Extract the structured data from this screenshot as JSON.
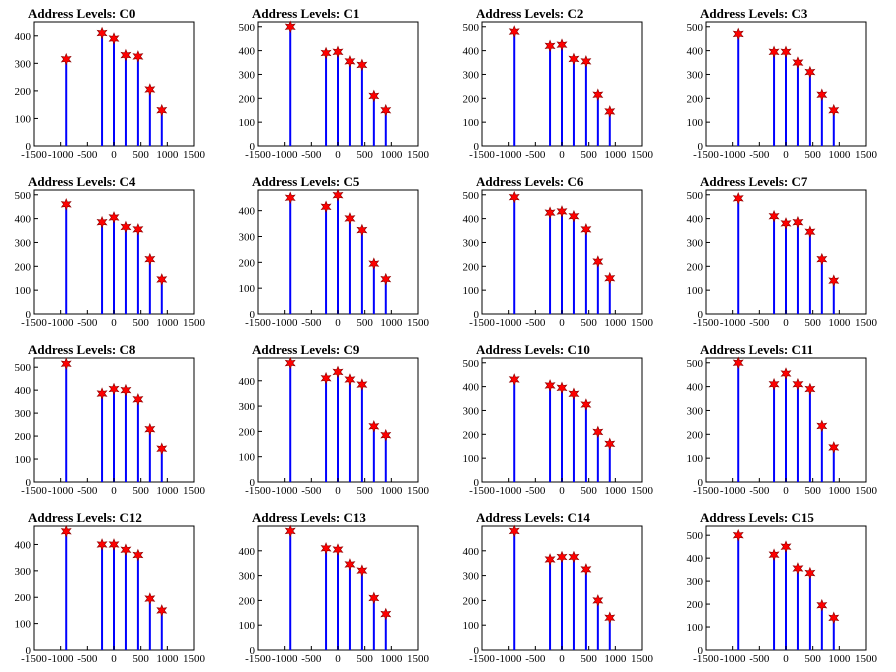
{
  "colors": {
    "spike": "#0000ff",
    "marker": "#ff0000",
    "axis": "#000000"
  },
  "chart_data": [
    {
      "type": "bar",
      "title": "Address Levels: C0",
      "title_prefix": "Address Levels: ",
      "label": "C0",
      "x": [
        -896,
        -224,
        0,
        224,
        448,
        672,
        896
      ],
      "values": [
        315,
        410,
        390,
        330,
        325,
        205,
        130
      ],
      "ylim": [
        0,
        450
      ],
      "yticks": [
        0,
        100,
        200,
        300,
        400
      ],
      "xlim": [
        -1500,
        1500
      ],
      "xticks": [
        -1500,
        -1000,
        -500,
        0,
        500,
        1000,
        1500
      ],
      "xticklabels": [
        "-1500",
        "-1000",
        "-500",
        "0",
        "500",
        "1000",
        "1500"
      ],
      "grid": false
    },
    {
      "type": "bar",
      "title": "Address Levels: C1",
      "title_prefix": "Address Levels: ",
      "label": "C1",
      "x": [
        -896,
        -224,
        0,
        224,
        448,
        672,
        896
      ],
      "values": [
        500,
        390,
        395,
        355,
        340,
        210,
        150
      ],
      "ylim": [
        0,
        520
      ],
      "yticks": [
        0,
        100,
        200,
        300,
        400,
        500
      ],
      "xlim": [
        -1500,
        1500
      ],
      "xticks": [
        -1500,
        -1000,
        -500,
        0,
        500,
        1000,
        1500
      ],
      "xticklabels": [
        "-1500",
        "-1000",
        "-500",
        "0",
        "500",
        "1000",
        "1500"
      ],
      "grid": false
    },
    {
      "type": "bar",
      "title": "Address Levels: C2",
      "title_prefix": "Address Levels: ",
      "label": "C2",
      "x": [
        -896,
        -224,
        0,
        224,
        448,
        672,
        896
      ],
      "values": [
        480,
        420,
        425,
        365,
        355,
        215,
        145
      ],
      "ylim": [
        0,
        520
      ],
      "yticks": [
        0,
        100,
        200,
        300,
        400,
        500
      ],
      "xlim": [
        -1500,
        1500
      ],
      "xticks": [
        -1500,
        -1000,
        -500,
        0,
        500,
        1000,
        1500
      ],
      "xticklabels": [
        "-1500",
        "-1000",
        "-500",
        "0",
        "500",
        "1000",
        "1500"
      ],
      "grid": false
    },
    {
      "type": "bar",
      "title": "Address Levels: C3",
      "title_prefix": "Address Levels: ",
      "label": "C3",
      "x": [
        -896,
        -224,
        0,
        224,
        448,
        672,
        896
      ],
      "values": [
        470,
        395,
        395,
        350,
        310,
        215,
        150
      ],
      "ylim": [
        0,
        520
      ],
      "yticks": [
        0,
        100,
        200,
        300,
        400,
        500
      ],
      "xlim": [
        -1500,
        1500
      ],
      "xticks": [
        -1500,
        -1000,
        -500,
        0,
        500,
        1000,
        1500
      ],
      "xticklabels": [
        "-1500",
        "-1000",
        "-500",
        "0",
        "500",
        "1000",
        "1500"
      ],
      "grid": false
    },
    {
      "type": "bar",
      "title": "Address Levels: C4",
      "title_prefix": "Address Levels: ",
      "label": "C4",
      "x": [
        -896,
        -224,
        0,
        224,
        448,
        672,
        896
      ],
      "values": [
        460,
        385,
        405,
        365,
        355,
        230,
        145
      ],
      "ylim": [
        0,
        520
      ],
      "yticks": [
        0,
        100,
        200,
        300,
        400,
        500
      ],
      "xlim": [
        -1500,
        1500
      ],
      "xticks": [
        -1500,
        -1000,
        -500,
        0,
        500,
        1000,
        1500
      ],
      "xticklabels": [
        "-1500",
        "-1000",
        "-500",
        "0",
        "500",
        "1000",
        "1500"
      ],
      "grid": false
    },
    {
      "type": "bar",
      "title": "Address Levels: C5",
      "title_prefix": "Address Levels: ",
      "label": "C5",
      "x": [
        -896,
        -224,
        0,
        224,
        448,
        672,
        896
      ],
      "values": [
        450,
        415,
        460,
        370,
        325,
        195,
        135
      ],
      "ylim": [
        0,
        480
      ],
      "yticks": [
        0,
        100,
        200,
        300,
        400
      ],
      "xlim": [
        -1500,
        1500
      ],
      "xticks": [
        -1500,
        -1000,
        -500,
        0,
        500,
        1000,
        1500
      ],
      "xticklabels": [
        "-1500",
        "-1000",
        "-500",
        "0",
        "500",
        "1000",
        "1500"
      ],
      "grid": false
    },
    {
      "type": "bar",
      "title": "Address Levels: C6",
      "title_prefix": "Address Levels: ",
      "label": "C6",
      "x": [
        -896,
        -224,
        0,
        224,
        448,
        672,
        896
      ],
      "values": [
        490,
        425,
        430,
        410,
        355,
        220,
        150
      ],
      "ylim": [
        0,
        520
      ],
      "yticks": [
        0,
        100,
        200,
        300,
        400,
        500
      ],
      "xlim": [
        -1500,
        1500
      ],
      "xticks": [
        -1500,
        -1000,
        -500,
        0,
        500,
        1000,
        1500
      ],
      "xticklabels": [
        "-1500",
        "-1000",
        "-500",
        "0",
        "500",
        "1000",
        "1500"
      ],
      "grid": false
    },
    {
      "type": "bar",
      "title": "Address Levels: C7",
      "title_prefix": "Address Levels: ",
      "label": "C7",
      "x": [
        -896,
        -224,
        0,
        224,
        448,
        672,
        896
      ],
      "values": [
        485,
        410,
        380,
        385,
        345,
        230,
        140
      ],
      "ylim": [
        0,
        520
      ],
      "yticks": [
        0,
        100,
        200,
        300,
        400,
        500
      ],
      "xlim": [
        -1500,
        1500
      ],
      "xticks": [
        -1500,
        -1000,
        -500,
        0,
        500,
        1000,
        1500
      ],
      "xticklabels": [
        "-1500",
        "-1000",
        "-500",
        "0",
        "500",
        "1000",
        "1500"
      ],
      "grid": false
    },
    {
      "type": "bar",
      "title": "Address Levels: C8",
      "title_prefix": "Address Levels: ",
      "label": "C8",
      "x": [
        -896,
        -224,
        0,
        224,
        448,
        672,
        896
      ],
      "values": [
        515,
        385,
        405,
        400,
        360,
        230,
        145
      ],
      "ylim": [
        0,
        540
      ],
      "yticks": [
        0,
        100,
        200,
        300,
        400,
        500
      ],
      "xlim": [
        -1500,
        1500
      ],
      "xticks": [
        -1500,
        -1000,
        -500,
        0,
        500,
        1000,
        1500
      ],
      "xticklabels": [
        "-1500",
        "-1000",
        "-500",
        "0",
        "500",
        "1000",
        "1500"
      ],
      "grid": false
    },
    {
      "type": "bar",
      "title": "Address Levels: C9",
      "title_prefix": "Address Levels: ",
      "label": "C9",
      "x": [
        -896,
        -224,
        0,
        224,
        448,
        672,
        896
      ],
      "values": [
        470,
        410,
        435,
        405,
        385,
        220,
        185
      ],
      "ylim": [
        0,
        490
      ],
      "yticks": [
        0,
        100,
        200,
        300,
        400
      ],
      "xlim": [
        -1500,
        1500
      ],
      "xticks": [
        -1500,
        -1000,
        -500,
        0,
        500,
        1000,
        1500
      ],
      "xticklabels": [
        "-1500",
        "-1000",
        "-500",
        "0",
        "500",
        "1000",
        "1500"
      ],
      "grid": false
    },
    {
      "type": "bar",
      "title": "Address Levels: C10",
      "title_prefix": "Address Levels: ",
      "label": "C10",
      "x": [
        -896,
        -224,
        0,
        224,
        448,
        672,
        896
      ],
      "values": [
        430,
        405,
        395,
        370,
        325,
        210,
        160
      ],
      "ylim": [
        0,
        520
      ],
      "yticks": [
        0,
        100,
        200,
        300,
        400,
        500
      ],
      "xlim": [
        -1500,
        1500
      ],
      "xticks": [
        -1500,
        -1000,
        -500,
        0,
        500,
        1000,
        1500
      ],
      "xticklabels": [
        "-1500",
        "-1000",
        "-500",
        "0",
        "500",
        "1000",
        "1500"
      ],
      "grid": false
    },
    {
      "type": "bar",
      "title": "Address Levels: C11",
      "title_prefix": "Address Levels: ",
      "label": "C11",
      "x": [
        -896,
        -224,
        0,
        224,
        448,
        672,
        896
      ],
      "values": [
        500,
        410,
        455,
        410,
        390,
        235,
        145
      ],
      "ylim": [
        0,
        520
      ],
      "yticks": [
        0,
        100,
        200,
        300,
        400,
        500
      ],
      "xlim": [
        -1500,
        1500
      ],
      "xticks": [
        -1500,
        -1000,
        -500,
        0,
        500,
        1000,
        1500
      ],
      "xticklabels": [
        "-1500",
        "-1000",
        "-500",
        "0",
        "500",
        "1000",
        "1500"
      ],
      "grid": false
    },
    {
      "type": "bar",
      "title": "Address Levels: C12",
      "title_prefix": "Address Levels: ",
      "label": "C12",
      "x": [
        -896,
        -224,
        0,
        224,
        448,
        672,
        896
      ],
      "values": [
        450,
        400,
        400,
        380,
        360,
        195,
        150
      ],
      "ylim": [
        0,
        470
      ],
      "yticks": [
        0,
        100,
        200,
        300,
        400
      ],
      "xlim": [
        -1500,
        1500
      ],
      "xticks": [
        -1500,
        -1000,
        -500,
        0,
        500,
        1000,
        1500
      ],
      "xticklabels": [
        "-1500",
        "-1000",
        "-500",
        "0",
        "500",
        "1000",
        "1500"
      ],
      "grid": false
    },
    {
      "type": "bar",
      "title": "Address Levels: C13",
      "title_prefix": "Address Levels: ",
      "label": "C13",
      "x": [
        -896,
        -224,
        0,
        224,
        448,
        672,
        896
      ],
      "values": [
        480,
        410,
        405,
        345,
        320,
        210,
        145
      ],
      "ylim": [
        0,
        500
      ],
      "yticks": [
        0,
        100,
        200,
        300,
        400
      ],
      "xlim": [
        -1500,
        1500
      ],
      "xticks": [
        -1500,
        -1000,
        -500,
        0,
        500,
        1000,
        1500
      ],
      "xticklabels": [
        "-1500",
        "-1000",
        "-500",
        "0",
        "500",
        "1000",
        "1500"
      ],
      "grid": false
    },
    {
      "type": "bar",
      "title": "Address Levels: C14",
      "title_prefix": "Address Levels: ",
      "label": "C14",
      "x": [
        -896,
        -224,
        0,
        224,
        448,
        672,
        896
      ],
      "values": [
        480,
        365,
        375,
        375,
        325,
        200,
        130
      ],
      "ylim": [
        0,
        500
      ],
      "yticks": [
        0,
        100,
        200,
        300,
        400
      ],
      "xlim": [
        -1500,
        1500
      ],
      "xticks": [
        -1500,
        -1000,
        -500,
        0,
        500,
        1000,
        1500
      ],
      "xticklabels": [
        "-1500",
        "-1000",
        "-500",
        "0",
        "500",
        "1000",
        "1500"
      ],
      "grid": false
    },
    {
      "type": "bar",
      "title": "Address Levels: C15",
      "title_prefix": "Address Levels: ",
      "label": "C15",
      "x": [
        -896,
        -224,
        0,
        224,
        448,
        672,
        896
      ],
      "values": [
        500,
        415,
        450,
        355,
        335,
        195,
        140
      ],
      "ylim": [
        0,
        540
      ],
      "yticks": [
        0,
        100,
        200,
        300,
        400,
        500
      ],
      "xlim": [
        -1500,
        1500
      ],
      "xticks": [
        -1500,
        -1000,
        -500,
        0,
        500,
        1000,
        1500
      ],
      "xticklabels": [
        "-1500",
        "-1000",
        "-500",
        "0",
        "500",
        "1000",
        "1500"
      ],
      "grid": false
    }
  ]
}
